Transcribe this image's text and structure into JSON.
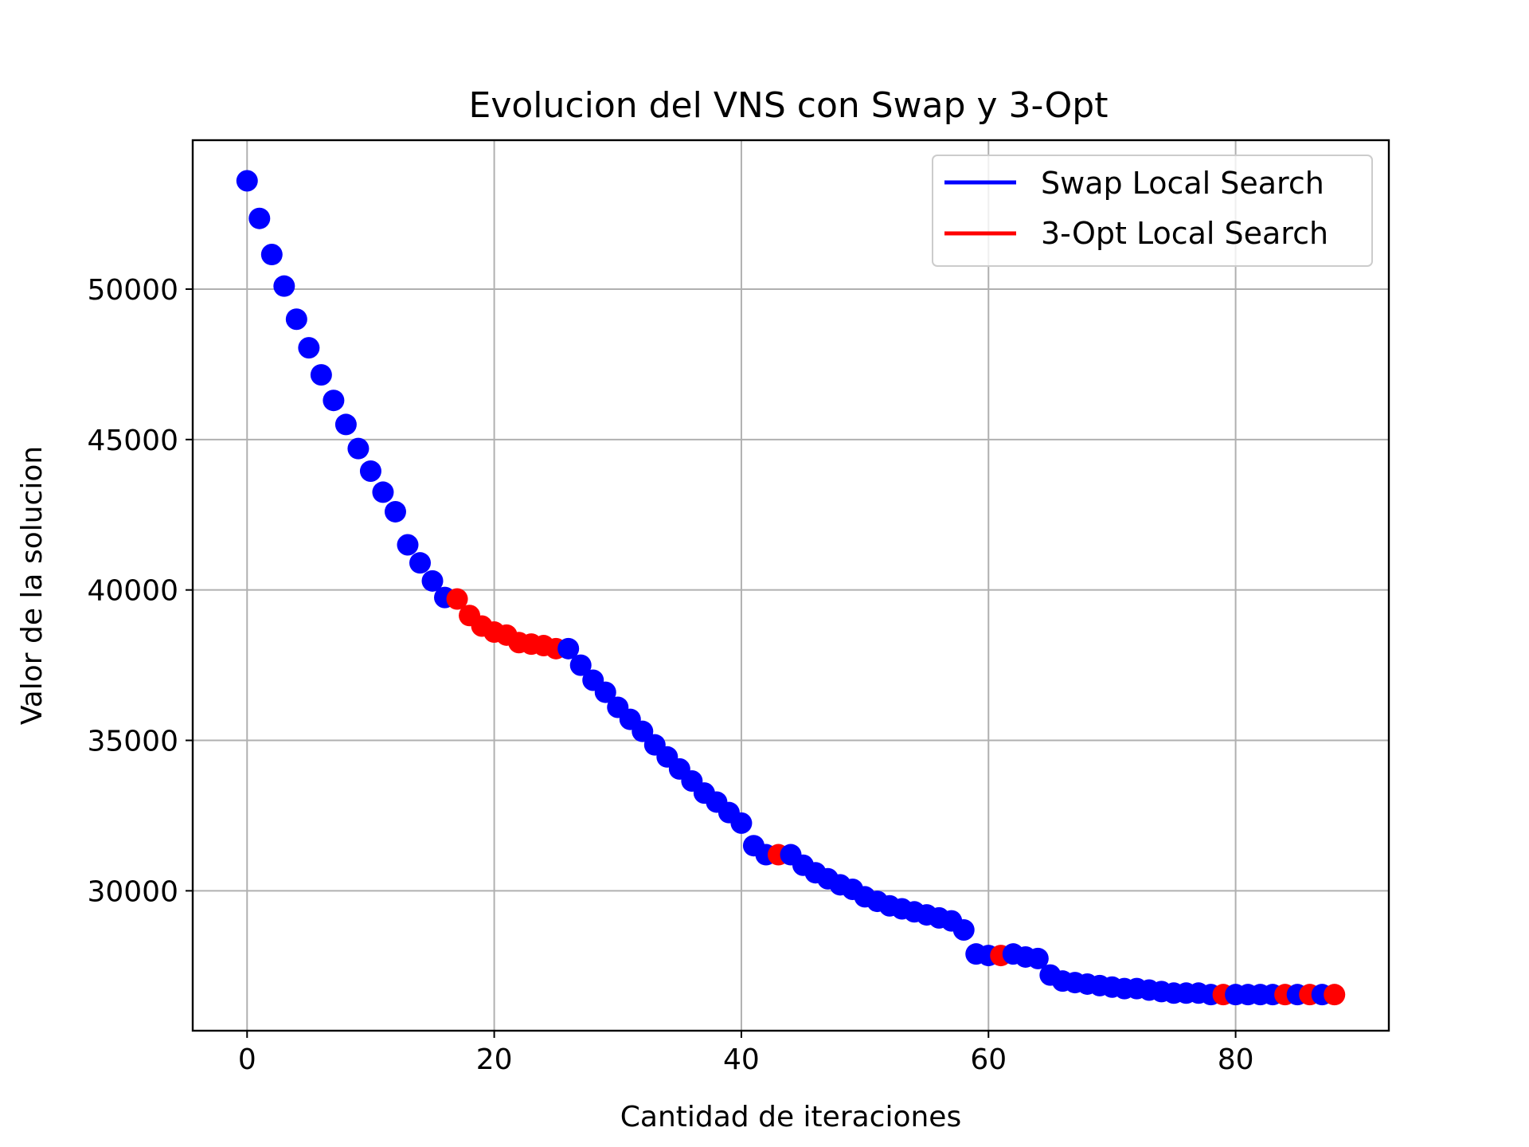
{
  "chart_data": {
    "type": "scatter",
    "title": "Evolucion del VNS con Swap y 3-Opt",
    "xlabel": "Cantidad de iteraciones",
    "ylabel": "Valor de la solucion",
    "xlim": [
      -4.4,
      92.4
    ],
    "ylim": [
      25350,
      54950
    ],
    "xticks": [
      0,
      20,
      40,
      60,
      80
    ],
    "yticks": [
      30000,
      35000,
      40000,
      45000,
      50000
    ],
    "grid": true,
    "legend_position": "top-right",
    "series": [
      {
        "name": "Swap Local Search",
        "color": "#0000ff"
      },
      {
        "name": "3-Opt Local Search",
        "color": "#ff0000"
      }
    ],
    "x": [
      0,
      1,
      2,
      3,
      4,
      5,
      6,
      7,
      8,
      9,
      10,
      11,
      12,
      13,
      14,
      15,
      16,
      17,
      18,
      19,
      20,
      21,
      22,
      23,
      24,
      25,
      26,
      27,
      28,
      29,
      30,
      31,
      32,
      33,
      34,
      35,
      36,
      37,
      38,
      39,
      40,
      41,
      42,
      43,
      44,
      45,
      46,
      47,
      48,
      49,
      50,
      51,
      52,
      53,
      54,
      55,
      56,
      57,
      58,
      59,
      60,
      61,
      62,
      63,
      64,
      65,
      66,
      67,
      68,
      69,
      70,
      71,
      72,
      73,
      74,
      75,
      76,
      77,
      78,
      79,
      80,
      81,
      82,
      83,
      84,
      85,
      86,
      87,
      88
    ],
    "y": [
      53600,
      52350,
      51150,
      50100,
      49000,
      48050,
      47150,
      46300,
      45500,
      44700,
      43950,
      43250,
      42600,
      41500,
      40900,
      40300,
      39750,
      39700,
      39150,
      38800,
      38600,
      38500,
      38250,
      38200,
      38150,
      38050,
      38050,
      37500,
      37000,
      36600,
      36100,
      35700,
      35300,
      34850,
      34450,
      34050,
      33650,
      33250,
      32950,
      32600,
      32250,
      31500,
      31200,
      31200,
      31200,
      30850,
      30600,
      30400,
      30200,
      30050,
      29800,
      29650,
      29500,
      29400,
      29300,
      29200,
      29100,
      29000,
      28700,
      27900,
      27850,
      27850,
      27900,
      27800,
      27750,
      27200,
      27000,
      26950,
      26900,
      26850,
      26800,
      26750,
      26750,
      26700,
      26650,
      26600,
      26600,
      26600,
      26550,
      26550,
      26550,
      26550,
      26550,
      26550,
      26550,
      26550,
      26550,
      26550,
      26550
    ],
    "method": [
      "swap",
      "swap",
      "swap",
      "swap",
      "swap",
      "swap",
      "swap",
      "swap",
      "swap",
      "swap",
      "swap",
      "swap",
      "swap",
      "swap",
      "swap",
      "swap",
      "swap",
      "3opt",
      "3opt",
      "3opt",
      "3opt",
      "3opt",
      "3opt",
      "3opt",
      "3opt",
      "3opt",
      "swap",
      "swap",
      "swap",
      "swap",
      "swap",
      "swap",
      "swap",
      "swap",
      "swap",
      "swap",
      "swap",
      "swap",
      "swap",
      "swap",
      "swap",
      "swap",
      "swap",
      "3opt",
      "swap",
      "swap",
      "swap",
      "swap",
      "swap",
      "swap",
      "swap",
      "swap",
      "swap",
      "swap",
      "swap",
      "swap",
      "swap",
      "swap",
      "swap",
      "swap",
      "swap",
      "3opt",
      "swap",
      "swap",
      "swap",
      "swap",
      "swap",
      "swap",
      "swap",
      "swap",
      "swap",
      "swap",
      "swap",
      "swap",
      "swap",
      "swap",
      "swap",
      "swap",
      "swap",
      "3opt",
      "swap",
      "swap",
      "swap",
      "swap",
      "3opt",
      "swap",
      "3opt",
      "swap",
      "3opt"
    ]
  }
}
